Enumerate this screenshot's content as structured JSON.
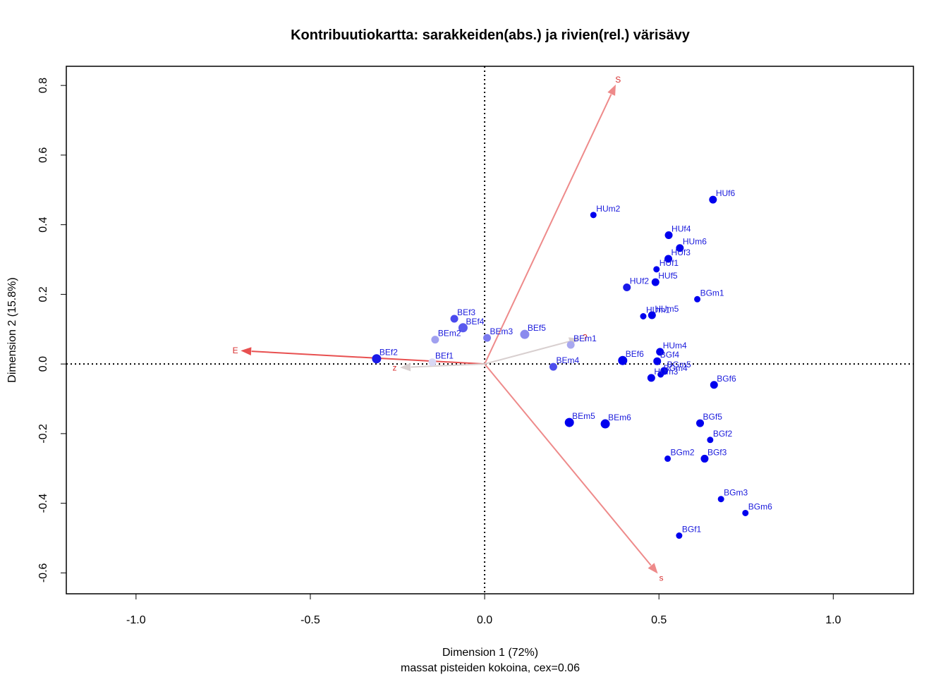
{
  "chart_data": {
    "type": "scatter",
    "title": "Kontribuutiokartta: sarakkeiden(abs.) ja rivien(rel.) värisävy",
    "xlabel": "Dimension 1 (72%)",
    "xlabel_sub": "massat pisteiden kokoina, cex=0.06",
    "ylabel": "Dimension 2 (15.8%)",
    "xlim": [
      -1.2,
      1.23
    ],
    "ylim": [
      -0.66,
      0.855
    ],
    "x_ticks": [
      {
        "value": -1.0,
        "label": "-1.0"
      },
      {
        "value": -0.5,
        "label": "-0.5"
      },
      {
        "value": 0.0,
        "label": "0.0"
      },
      {
        "value": 0.5,
        "label": "0.5"
      },
      {
        "value": 1.0,
        "label": "1.0"
      }
    ],
    "y_ticks": [
      {
        "value": -0.6,
        "label": "-0.6"
      },
      {
        "value": -0.4,
        "label": "-0.4"
      },
      {
        "value": -0.2,
        "label": "-0.2"
      },
      {
        "value": 0.0,
        "label": "0.0"
      },
      {
        "value": 0.2,
        "label": "0.2"
      },
      {
        "value": 0.4,
        "label": "0.4"
      },
      {
        "value": 0.6,
        "label": "0.6"
      },
      {
        "value": 0.8,
        "label": "0.8"
      }
    ],
    "reference_lines": {
      "x": 0,
      "y": 0,
      "style": "dotted"
    },
    "points": [
      {
        "label": "HUf6",
        "x": 0.655,
        "y": 0.472,
        "mass": 3,
        "color": "#0000ee"
      },
      {
        "label": "HUm2",
        "x": 0.312,
        "y": 0.428,
        "mass": 2,
        "color": "#0000ee"
      },
      {
        "label": "HUf4",
        "x": 0.528,
        "y": 0.37,
        "mass": 3,
        "color": "#0000ee"
      },
      {
        "label": "HUm6",
        "x": 0.56,
        "y": 0.333,
        "mass": 3,
        "color": "#0000ee"
      },
      {
        "label": "HUf3",
        "x": 0.527,
        "y": 0.302,
        "mass": 3,
        "color": "#0000ee"
      },
      {
        "label": "HUf1",
        "x": 0.493,
        "y": 0.272,
        "mass": 2,
        "color": "#0000ee"
      },
      {
        "label": "HUf5",
        "x": 0.49,
        "y": 0.235,
        "mass": 3,
        "color": "#0000ee"
      },
      {
        "label": "HUf2",
        "x": 0.408,
        "y": 0.22,
        "mass": 3,
        "color": "#1a1aea"
      },
      {
        "label": "BGm1",
        "x": 0.61,
        "y": 0.186,
        "mass": 2,
        "color": "#0000ee"
      },
      {
        "label": "HUm1",
        "x": 0.455,
        "y": 0.137,
        "mass": 2,
        "color": "#0000ee"
      },
      {
        "label": "HUm5",
        "x": 0.48,
        "y": 0.14,
        "mass": 3,
        "color": "#0000ee"
      },
      {
        "label": "HUm4",
        "x": 0.503,
        "y": 0.035,
        "mass": 3,
        "color": "#0000ee"
      },
      {
        "label": "BGf4",
        "x": 0.495,
        "y": 0.008,
        "mass": 3,
        "color": "#0000ee"
      },
      {
        "label": "BGm5",
        "x": 0.515,
        "y": -0.02,
        "mass": 3,
        "color": "#0000ee"
      },
      {
        "label": "BGm4",
        "x": 0.505,
        "y": -0.03,
        "mass": 2,
        "color": "#0000ee"
      },
      {
        "label": "HUm3",
        "x": 0.478,
        "y": -0.04,
        "mass": 3,
        "color": "#0000ee"
      },
      {
        "label": "BGf6",
        "x": 0.658,
        "y": -0.06,
        "mass": 3,
        "color": "#0000ee"
      },
      {
        "label": "BEf6",
        "x": 0.396,
        "y": 0.01,
        "mass": 4,
        "color": "#0000ee"
      },
      {
        "label": "BEm4",
        "x": 0.197,
        "y": -0.008,
        "mass": 3,
        "color": "#4d4ded"
      },
      {
        "label": "BEm1",
        "x": 0.247,
        "y": 0.055,
        "mass": 3,
        "color": "#a8a8ef"
      },
      {
        "label": "BEf5",
        "x": 0.115,
        "y": 0.085,
        "mass": 4,
        "color": "#8a8aee"
      },
      {
        "label": "BEm3",
        "x": 0.007,
        "y": 0.075,
        "mass": 3,
        "color": "#7a7aee"
      },
      {
        "label": "BEf3",
        "x": -0.087,
        "y": 0.13,
        "mass": 3,
        "color": "#4a4aee"
      },
      {
        "label": "BEf4",
        "x": -0.062,
        "y": 0.104,
        "mass": 4,
        "color": "#5a5aee"
      },
      {
        "label": "BEm2",
        "x": -0.142,
        "y": 0.07,
        "mass": 3,
        "color": "#a0a0ef"
      },
      {
        "label": "BEf1",
        "x": -0.15,
        "y": 0.005,
        "mass": 3,
        "color": "#d8d8f4"
      },
      {
        "label": "BEf2",
        "x": -0.31,
        "y": 0.015,
        "mass": 4,
        "color": "#1a1ae8"
      },
      {
        "label": "BEm5",
        "x": 0.243,
        "y": -0.168,
        "mass": 4,
        "color": "#0000ee"
      },
      {
        "label": "BEm6",
        "x": 0.346,
        "y": -0.172,
        "mass": 4,
        "color": "#0000ee"
      },
      {
        "label": "BGf5",
        "x": 0.618,
        "y": -0.17,
        "mass": 3,
        "color": "#0000ee"
      },
      {
        "label": "BGf2",
        "x": 0.647,
        "y": -0.218,
        "mass": 2,
        "color": "#0000ee"
      },
      {
        "label": "BGm2",
        "x": 0.525,
        "y": -0.272,
        "mass": 2,
        "color": "#0000ee"
      },
      {
        "label": "BGf3",
        "x": 0.631,
        "y": -0.272,
        "mass": 3,
        "color": "#0000ee"
      },
      {
        "label": "BGm3",
        "x": 0.678,
        "y": -0.388,
        "mass": 2,
        "color": "#0000ee"
      },
      {
        "label": "BGm6",
        "x": 0.748,
        "y": -0.428,
        "mass": 2,
        "color": "#0000ee"
      },
      {
        "label": "BGf1",
        "x": 0.558,
        "y": -0.493,
        "mass": 2,
        "color": "#0000ee"
      }
    ],
    "arrows": [
      {
        "label": "S",
        "x": 0.375,
        "y": 0.8,
        "color": "#ee8a8a"
      },
      {
        "label": "s",
        "x": 0.495,
        "y": -0.6,
        "color": "#ee8a8a"
      },
      {
        "label": "E",
        "x": -0.697,
        "y": 0.038,
        "color": "#e85050"
      },
      {
        "label": "?",
        "x": 0.27,
        "y": 0.072,
        "color": "#d8cfcf"
      },
      {
        "label": "z",
        "x": -0.24,
        "y": -0.01,
        "color": "#d8cfcf"
      }
    ]
  }
}
